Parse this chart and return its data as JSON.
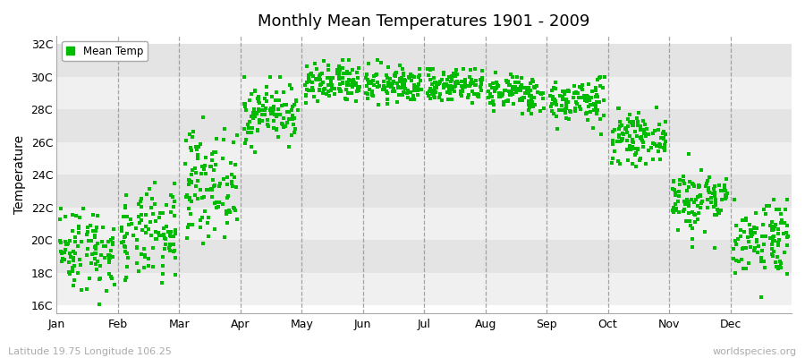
{
  "title": "Monthly Mean Temperatures 1901 - 2009",
  "ylabel": "Temperature",
  "months": [
    "Jan",
    "Feb",
    "Mar",
    "Apr",
    "May",
    "Jun",
    "Jul",
    "Aug",
    "Sep",
    "Oct",
    "Nov",
    "Dec"
  ],
  "yticks": [
    16,
    18,
    20,
    22,
    24,
    26,
    28,
    30,
    32
  ],
  "ylim": [
    15.5,
    32.5
  ],
  "mean_temps": [
    19.5,
    20.2,
    23.5,
    27.8,
    29.5,
    29.5,
    29.5,
    29.0,
    28.5,
    26.2,
    22.5,
    20.2
  ],
  "std_temps": [
    1.3,
    1.4,
    1.6,
    0.9,
    0.65,
    0.55,
    0.55,
    0.55,
    0.7,
    0.7,
    1.0,
    1.2
  ],
  "min_temps": [
    15.5,
    16.0,
    19.0,
    25.0,
    27.0,
    27.5,
    27.5,
    27.0,
    26.5,
    23.5,
    19.5,
    16.5
  ],
  "max_temps": [
    22.5,
    24.0,
    27.5,
    30.0,
    31.0,
    31.0,
    30.5,
    30.5,
    30.0,
    28.5,
    25.5,
    22.5
  ],
  "n_years": 109,
  "dot_color": "#00bb00",
  "dot_size": 7,
  "hband_colors": [
    "#f0f0f0",
    "#e4e4e4"
  ],
  "vband_colors": [
    "#f8f8f8",
    "#ececec"
  ],
  "background_color": "#ffffff",
  "grid_color": "#909090",
  "footer_left": "Latitude 19.75 Longitude 106.25",
  "footer_right": "worldspecies.org",
  "legend_label": "Mean Temp"
}
